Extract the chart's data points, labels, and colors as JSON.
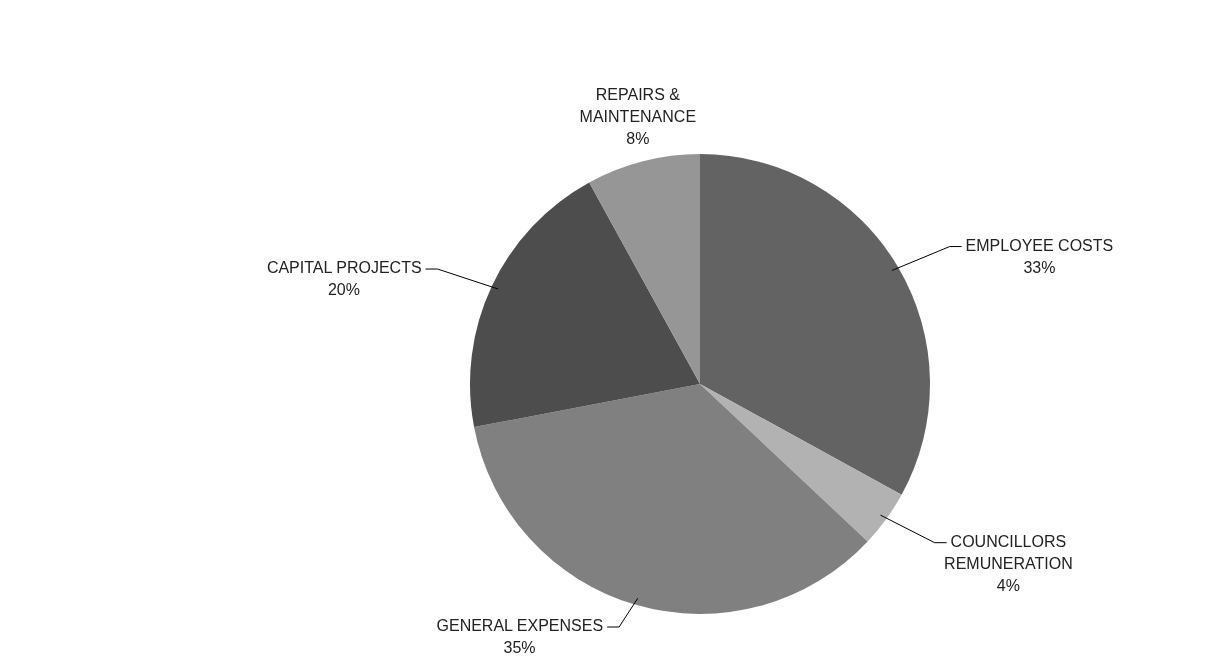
{
  "chart_data": {
    "type": "pie",
    "categories": [
      "EMPLOYEE COSTS",
      "COUNCILLORS REMUNERATION",
      "GENERAL EXPENSES",
      "CAPITAL PROJECTS",
      "REPAIRS & MAINTENANCE"
    ],
    "values": [
      33,
      4,
      35,
      20,
      8
    ],
    "colors": [
      "#636363",
      "#b2b2b2",
      "#808080",
      "#4d4d4d",
      "#969696"
    ],
    "value_labels": [
      "33%",
      "4%",
      "35%",
      "20%",
      "8%"
    ],
    "legend": false
  }
}
